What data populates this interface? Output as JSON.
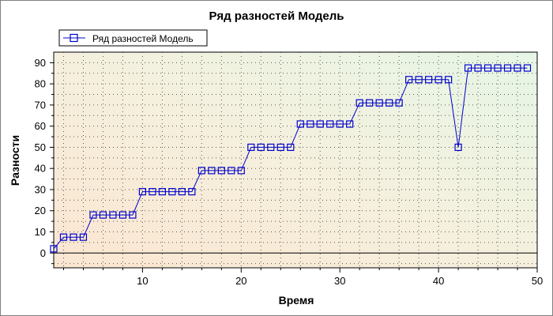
{
  "chart_data": {
    "type": "line",
    "title": "Ряд разностей Модель",
    "xlabel": "Время",
    "ylabel": "Разности",
    "legend": "top-left",
    "grid": true,
    "xlim": [
      1,
      50
    ],
    "ylim": [
      -7,
      95
    ],
    "xticks": [
      10,
      20,
      30,
      40,
      50
    ],
    "yticks": [
      0,
      10,
      20,
      30,
      40,
      50,
      60,
      70,
      80,
      90
    ],
    "series": [
      {
        "name": "Ряд разностей Модель",
        "color": "#0000cc",
        "marker": "square",
        "x": [
          1,
          2,
          3,
          4,
          5,
          6,
          7,
          8,
          9,
          10,
          11,
          12,
          13,
          14,
          15,
          16,
          17,
          18,
          19,
          20,
          21,
          22,
          23,
          24,
          25,
          26,
          27,
          28,
          29,
          30,
          31,
          32,
          33,
          34,
          35,
          36,
          37,
          38,
          39,
          40,
          41,
          42,
          43,
          44,
          45,
          46,
          47,
          48,
          49
        ],
        "y": [
          2,
          7.5,
          7.5,
          7.5,
          18,
          18,
          18,
          18,
          18,
          29,
          29,
          29,
          29,
          29,
          29,
          39,
          39,
          39,
          39,
          39,
          50,
          50,
          50,
          50,
          50,
          61,
          61,
          61,
          61,
          61,
          61,
          71,
          71,
          71,
          71,
          71,
          82,
          82,
          82,
          82,
          82,
          50,
          87.5,
          87.5,
          87.5,
          87.5,
          87.5,
          87.5,
          87.5
        ]
      }
    ]
  }
}
